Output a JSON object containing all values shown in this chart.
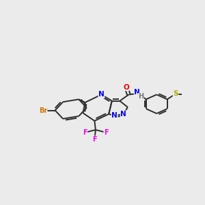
{
  "bg_color": "#EBEBEB",
  "bond_color": "#2D2D2D",
  "atom_colors": {
    "N": "#0000EE",
    "O": "#EE0000",
    "F": "#EE00EE",
    "Br": "#CC7700",
    "S": "#AAAA00",
    "C": "#2D2D2D",
    "H": "#777777"
  },
  "figsize": [
    3.0,
    3.0
  ],
  "dpi": 100
}
